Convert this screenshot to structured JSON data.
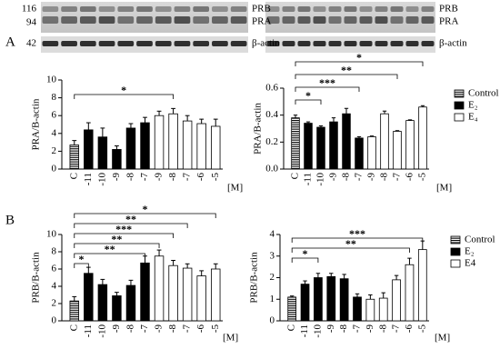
{
  "figure": {
    "panel_labels": [
      "A",
      "B"
    ],
    "blots": [
      {
        "markers": [
          "116",
          "94",
          "42"
        ],
        "bands": [
          "PRB",
          "PRA",
          "β-actin"
        ]
      },
      {
        "bands": [
          "PRB",
          "PRA",
          "β-actin"
        ]
      }
    ]
  },
  "chart_data": [
    {
      "type": "bar",
      "ylabel": "PRA/B-actin",
      "x_unit": "[M]",
      "categories": [
        "C",
        "-11",
        "-10",
        "-9",
        "-8",
        "-7",
        "-9",
        "-8",
        "-7",
        "-6",
        "-5"
      ],
      "ylim": [
        0,
        10
      ],
      "yticks": [
        0,
        2,
        4,
        6,
        8,
        10
      ],
      "legend": false,
      "series": [
        {
          "fill": "striped",
          "values": [
            2.7,
            null,
            null,
            null,
            null,
            null,
            null,
            null,
            null,
            null,
            null
          ],
          "errors": [
            0.5,
            null,
            null,
            null,
            null,
            null,
            null,
            null,
            null,
            null,
            null
          ]
        },
        {
          "fill": "#000000",
          "values": [
            null,
            4.4,
            3.6,
            2.2,
            4.6,
            5.2,
            null,
            null,
            null,
            null,
            null
          ],
          "errors": [
            null,
            0.8,
            1.0,
            0.4,
            0.5,
            0.6,
            null,
            null,
            null,
            null,
            null
          ]
        },
        {
          "fill": "#ffffff",
          "values": [
            null,
            null,
            null,
            null,
            null,
            null,
            6.0,
            6.2,
            5.4,
            5.1,
            4.8
          ],
          "errors": [
            null,
            null,
            null,
            null,
            null,
            null,
            0.5,
            0.6,
            0.6,
            0.5,
            0.8
          ]
        }
      ],
      "brackets": [
        {
          "from": 0,
          "to": 7,
          "label": "*"
        }
      ]
    },
    {
      "type": "bar",
      "ylabel": "PRA/B-actin",
      "x_unit": "[M]",
      "categories": [
        "C",
        "-11",
        "-10",
        "-9",
        "-8",
        "-7",
        "-9",
        "-8",
        "-7",
        "-6",
        "-5"
      ],
      "ylim": [
        0,
        0.6
      ],
      "yticks": [
        {
          "value": 0,
          "label": "0.0"
        },
        0.2,
        0.4,
        0.6
      ],
      "legend": true,
      "series": [
        {
          "name": "Control",
          "fill": "striped",
          "values": [
            0.38,
            null,
            null,
            null,
            null,
            null,
            null,
            null,
            null,
            null,
            null
          ],
          "errors": [
            0.02,
            null,
            null,
            null,
            null,
            null,
            null,
            null,
            null,
            null,
            null
          ]
        },
        {
          "name": "E₂",
          "fill": "#000000",
          "values": [
            null,
            0.34,
            0.31,
            0.35,
            0.41,
            0.23,
            null,
            null,
            null,
            null,
            null
          ],
          "errors": [
            null,
            0.01,
            0.01,
            0.03,
            0.04,
            0.01,
            null,
            null,
            null,
            null,
            null
          ]
        },
        {
          "name": "E₄",
          "fill": "#ffffff",
          "values": [
            null,
            null,
            null,
            null,
            null,
            null,
            0.24,
            0.41,
            0.28,
            0.36,
            0.46
          ],
          "errors": [
            null,
            null,
            null,
            null,
            null,
            null,
            0.005,
            0.02,
            0.005,
            0.005,
            0.01
          ]
        }
      ],
      "brackets": [
        {
          "from": 0,
          "to": 2,
          "label": "*"
        },
        {
          "from": 0,
          "to": 5,
          "label": "***"
        },
        {
          "from": 0,
          "to": 8,
          "label": "**"
        },
        {
          "from": 0,
          "to": 10,
          "label": "*"
        }
      ]
    },
    {
      "type": "bar",
      "ylabel": "PRB/B-actin",
      "x_unit": "[M]",
      "categories": [
        "C",
        "-11",
        "-10",
        "-9",
        "-8",
        "-7",
        "-9",
        "-8",
        "-7",
        "-6",
        "-5"
      ],
      "ylim": [
        0,
        10
      ],
      "yticks": [
        0,
        2,
        4,
        6,
        8,
        10
      ],
      "legend": false,
      "series": [
        {
          "fill": "striped",
          "values": [
            2.3,
            null,
            null,
            null,
            null,
            null,
            null,
            null,
            null,
            null,
            null
          ],
          "errors": [
            0.5,
            null,
            null,
            null,
            null,
            null,
            null,
            null,
            null,
            null,
            null
          ]
        },
        {
          "fill": "#000000",
          "values": [
            null,
            5.5,
            4.2,
            2.9,
            4.1,
            6.7,
            null,
            null,
            null,
            null,
            null
          ],
          "errors": [
            null,
            0.7,
            0.6,
            0.4,
            0.6,
            0.8,
            null,
            null,
            null,
            null,
            null
          ]
        },
        {
          "fill": "#ffffff",
          "values": [
            null,
            null,
            null,
            null,
            null,
            null,
            7.5,
            6.4,
            6.1,
            5.2,
            6.0
          ],
          "errors": [
            null,
            null,
            null,
            null,
            null,
            null,
            0.7,
            0.6,
            0.5,
            0.6,
            0.6
          ]
        }
      ],
      "brackets": [
        {
          "from": 0,
          "to": 1,
          "label": "*"
        },
        {
          "from": 0,
          "to": 5,
          "label": "**"
        },
        {
          "from": 0,
          "to": 6,
          "label": "**"
        },
        {
          "from": 0,
          "to": 7,
          "label": "***"
        },
        {
          "from": 0,
          "to": 8,
          "label": "**"
        },
        {
          "from": 0,
          "to": 10,
          "label": "*"
        }
      ]
    },
    {
      "type": "bar",
      "ylabel": "PRB/B-actin",
      "x_unit": "[M]",
      "categories": [
        "C",
        "-11",
        "-10",
        "-9",
        "-8",
        "-7",
        "-9",
        "-8",
        "-7",
        "-6",
        "-5"
      ],
      "ylim": [
        0,
        4
      ],
      "yticks": [
        0,
        1,
        2,
        3,
        4
      ],
      "legend": true,
      "series": [
        {
          "name": "Control",
          "fill": "striped",
          "values": [
            1.1,
            null,
            null,
            null,
            null,
            null,
            null,
            null,
            null,
            null,
            null
          ],
          "errors": [
            0.05,
            null,
            null,
            null,
            null,
            null,
            null,
            null,
            null,
            null,
            null
          ]
        },
        {
          "name": "E₂",
          "fill": "#000000",
          "values": [
            null,
            1.7,
            2.0,
            2.05,
            1.95,
            1.1,
            null,
            null,
            null,
            null,
            null
          ],
          "errors": [
            null,
            0.15,
            0.2,
            0.15,
            0.2,
            0.15,
            null,
            null,
            null,
            null,
            null
          ]
        },
        {
          "name": "E4",
          "fill": "#ffffff",
          "values": [
            null,
            null,
            null,
            null,
            null,
            null,
            1.0,
            1.05,
            1.9,
            2.6,
            3.3
          ],
          "errors": [
            null,
            null,
            null,
            null,
            null,
            null,
            0.2,
            0.25,
            0.2,
            0.3,
            0.4
          ]
        }
      ],
      "brackets": [
        {
          "from": 0,
          "to": 2,
          "label": "*"
        },
        {
          "from": 0,
          "to": 9,
          "label": "**"
        },
        {
          "from": 0,
          "to": 10,
          "label": "***"
        }
      ]
    }
  ]
}
